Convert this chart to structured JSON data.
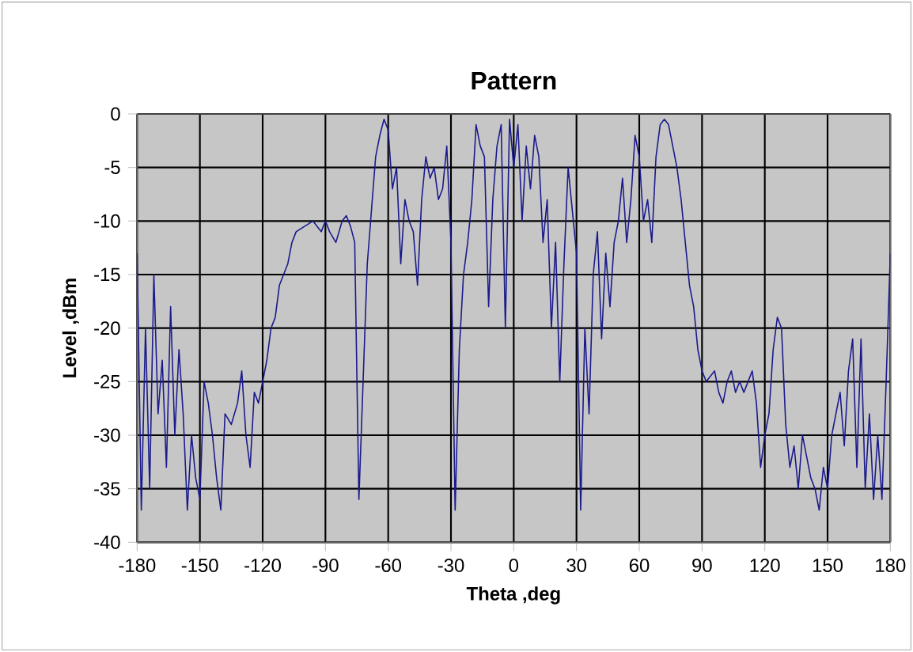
{
  "chart_data": {
    "type": "line",
    "title": "Pattern",
    "xlabel": "Theta ,deg",
    "ylabel": "Level ,dBm",
    "xlim": [
      -180,
      180
    ],
    "ylim": [
      -40,
      0
    ],
    "xticks": [
      -180,
      -150,
      -120,
      -90,
      -60,
      -30,
      0,
      30,
      60,
      90,
      120,
      150,
      180
    ],
    "yticks": [
      -40,
      -35,
      -30,
      -25,
      -20,
      -15,
      -10,
      -5,
      0
    ],
    "grid": true,
    "marker": "none",
    "line_style": "solid",
    "series": [
      {
        "color": "#1a1a8c",
        "x": [
          -180,
          -178,
          -176,
          -174,
          -172,
          -170,
          -168,
          -166,
          -164,
          -162,
          -160,
          -158,
          -156,
          -154,
          -152,
          -150,
          -148,
          -146,
          -144,
          -142,
          -140,
          -138,
          -135,
          -132,
          -130,
          -128,
          -126,
          -124,
          -122,
          -120,
          -118,
          -116,
          -114,
          -112,
          -110,
          -108,
          -106,
          -104,
          -100,
          -96,
          -92,
          -90,
          -88,
          -85,
          -82,
          -80,
          -78,
          -76,
          -74,
          -72,
          -70,
          -68,
          -66,
          -64,
          -62,
          -60,
          -58,
          -56,
          -54,
          -52,
          -50,
          -48,
          -46,
          -44,
          -42,
          -40,
          -38,
          -36,
          -34,
          -32,
          -30,
          -28,
          -26,
          -24,
          -22,
          -20,
          -18,
          -16,
          -14,
          -12,
          -10,
          -8,
          -6,
          -4,
          -2,
          0,
          2,
          4,
          6,
          8,
          10,
          12,
          14,
          16,
          18,
          20,
          22,
          24,
          26,
          28,
          30,
          32,
          34,
          36,
          38,
          40,
          42,
          44,
          46,
          48,
          50,
          52,
          54,
          56,
          58,
          60,
          62,
          64,
          66,
          68,
          70,
          72,
          74,
          76,
          78,
          80,
          82,
          84,
          86,
          88,
          90,
          92,
          94,
          96,
          98,
          100,
          102,
          104,
          106,
          108,
          110,
          112,
          114,
          116,
          118,
          120,
          122,
          124,
          126,
          128,
          130,
          132,
          134,
          136,
          138,
          140,
          142,
          144,
          146,
          148,
          150,
          152,
          154,
          156,
          158,
          160,
          162,
          164,
          166,
          168,
          170,
          172,
          174,
          176,
          178,
          180
        ],
        "values": [
          -13,
          -37,
          -20,
          -35,
          -15,
          -28,
          -23,
          -33,
          -18,
          -30,
          -22,
          -28,
          -37,
          -30,
          -34,
          -36,
          -25,
          -27,
          -30,
          -34,
          -37,
          -28,
          -29,
          -27,
          -24,
          -30,
          -33,
          -26,
          -27,
          -25,
          -23,
          -20,
          -19,
          -16,
          -15,
          -14,
          -12,
          -11,
          -10.5,
          -10,
          -11,
          -10,
          -11,
          -12,
          -10,
          -9.5,
          -10.5,
          -12,
          -36,
          -25,
          -14,
          -9,
          -4,
          -2,
          -0.5,
          -1.5,
          -7,
          -5,
          -14,
          -8,
          -10,
          -11,
          -16,
          -8,
          -4,
          -6,
          -5,
          -8,
          -7,
          -3,
          -12,
          -37,
          -22,
          -15,
          -12,
          -8,
          -1,
          -3,
          -4,
          -18,
          -8,
          -3,
          -1,
          -20,
          -0.5,
          -5,
          -1,
          -10,
          -3,
          -7,
          -2,
          -4,
          -12,
          -8,
          -20,
          -12,
          -25,
          -14,
          -5,
          -9,
          -13,
          -37,
          -20,
          -28,
          -15,
          -11,
          -21,
          -13,
          -18,
          -12,
          -10,
          -6,
          -12,
          -8,
          -2,
          -4,
          -10,
          -8,
          -12,
          -4,
          -1,
          -0.5,
          -1,
          -3,
          -5,
          -8,
          -12,
          -16,
          -18,
          -22,
          -24,
          -25,
          -24.5,
          -24,
          -26,
          -27,
          -25,
          -24,
          -26,
          -25,
          -26,
          -25,
          -24,
          -27,
          -33,
          -30,
          -28,
          -22,
          -19,
          -20,
          -29,
          -33,
          -31,
          -35,
          -30,
          -32,
          -34,
          -35,
          -37,
          -33,
          -35,
          -30,
          -28,
          -26,
          -31,
          -24,
          -21,
          -33,
          -21,
          -35,
          -28,
          -36,
          -30,
          -36,
          -25,
          -13
        ]
      }
    ]
  }
}
